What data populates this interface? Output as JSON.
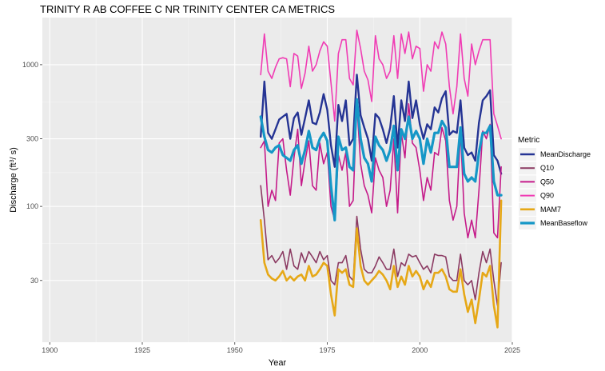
{
  "chart_data": {
    "type": "line",
    "title": "TRINITY R AB COFFEE C NR TRINITY CENTER CA  METRICS",
    "xlabel": "Year",
    "ylabel_main": "Discharge (ft",
    "ylabel_sup": "3",
    "ylabel_tail": "/ s)",
    "log_y": true,
    "xlim": [
      1898,
      2025
    ],
    "ylim": [
      11,
      2150
    ],
    "x_ticks": [
      1900,
      1925,
      1950,
      1975,
      2000,
      2025
    ],
    "y_ticks": [
      30,
      100,
      300,
      1000
    ],
    "grid": true,
    "legend_title": "Metric",
    "legend_position": "right",
    "x": [
      1957,
      1958,
      1959,
      1960,
      1961,
      1962,
      1963,
      1964,
      1965,
      1966,
      1967,
      1968,
      1969,
      1970,
      1971,
      1972,
      1973,
      1974,
      1975,
      1976,
      1977,
      1978,
      1979,
      1980,
      1981,
      1982,
      1983,
      1984,
      1985,
      1986,
      1987,
      1988,
      1989,
      1990,
      1991,
      1992,
      1993,
      1994,
      1995,
      1996,
      1997,
      1998,
      1999,
      2000,
      2001,
      2002,
      2003,
      2004,
      2005,
      2006,
      2007,
      2008,
      2009,
      2010,
      2011,
      2012,
      2013,
      2014,
      2015,
      2016,
      2017,
      2018,
      2019,
      2020,
      2021,
      2022
    ],
    "series": [
      {
        "name": "MeanDischarge",
        "color": "#253494",
        "width": 2.4,
        "values": [
          310,
          760,
          330,
          300,
          350,
          410,
          430,
          450,
          300,
          420,
          460,
          320,
          420,
          560,
          390,
          380,
          460,
          620,
          480,
          270,
          190,
          520,
          400,
          560,
          270,
          300,
          850,
          440,
          360,
          300,
          210,
          450,
          420,
          350,
          280,
          360,
          600,
          260,
          560,
          400,
          760,
          420,
          560,
          380,
          300,
          380,
          350,
          500,
          460,
          580,
          650,
          320,
          340,
          330,
          560,
          260,
          230,
          240,
          210,
          390,
          560,
          600,
          660,
          230,
          210,
          170
        ]
      },
      {
        "name": "Q10",
        "color": "#8b3a62",
        "width": 1.6,
        "values": [
          140,
          80,
          42,
          45,
          40,
          43,
          48,
          36,
          50,
          38,
          36,
          47,
          40,
          48,
          44,
          40,
          48,
          42,
          45,
          30,
          28,
          40,
          40,
          45,
          32,
          30,
          85,
          50,
          36,
          34,
          34,
          38,
          44,
          40,
          36,
          36,
          50,
          32,
          40,
          38,
          46,
          44,
          45,
          40,
          36,
          38,
          34,
          46,
          45,
          45,
          44,
          32,
          30,
          30,
          46,
          30,
          28,
          30,
          22,
          34,
          48,
          40,
          50,
          30,
          20,
          40
        ]
      },
      {
        "name": "Q50",
        "color": "#c51b8a",
        "width": 1.6,
        "values": [
          260,
          290,
          100,
          130,
          110,
          280,
          300,
          180,
          120,
          220,
          350,
          140,
          210,
          290,
          140,
          130,
          280,
          200,
          240,
          100,
          80,
          230,
          180,
          240,
          100,
          110,
          530,
          200,
          140,
          120,
          90,
          220,
          180,
          160,
          100,
          130,
          300,
          90,
          330,
          220,
          530,
          280,
          260,
          180,
          110,
          160,
          130,
          240,
          230,
          360,
          290,
          110,
          80,
          100,
          340,
          90,
          60,
          80,
          60,
          130,
          340,
          300,
          380,
          65,
          60,
          190
        ]
      },
      {
        "name": "Q90",
        "color": "#f03cb4",
        "width": 1.6,
        "values": [
          850,
          1650,
          900,
          800,
          960,
          1100,
          1120,
          1100,
          700,
          1200,
          1150,
          680,
          870,
          1350,
          900,
          1000,
          1250,
          1450,
          1350,
          750,
          400,
          1200,
          1500,
          1500,
          800,
          720,
          1750,
          1300,
          900,
          780,
          550,
          1600,
          1100,
          1000,
          800,
          900,
          1600,
          800,
          1650,
          1200,
          1700,
          1100,
          1350,
          1300,
          650,
          1000,
          900,
          1450,
          1300,
          1700,
          1400,
          700,
          450,
          700,
          1650,
          800,
          600,
          1400,
          1000,
          1250,
          1500,
          1500,
          1500,
          450,
          370,
          300
        ]
      },
      {
        "name": "MAM7",
        "color": "#e6a817",
        "width": 2.6,
        "values": [
          80,
          40,
          33,
          31,
          30,
          32,
          35,
          30,
          32,
          30,
          32,
          33,
          30,
          38,
          32,
          33,
          36,
          40,
          38,
          24,
          17,
          36,
          34,
          36,
          28,
          27,
          70,
          38,
          30,
          28,
          30,
          32,
          35,
          33,
          30,
          26,
          38,
          27,
          32,
          28,
          38,
          32,
          35,
          32,
          26,
          30,
          27,
          34,
          34,
          36,
          32,
          26,
          25,
          25,
          36,
          24,
          18,
          22,
          15,
          22,
          34,
          32,
          38,
          20,
          14,
          110
        ]
      },
      {
        "name": "MeanBaseflow",
        "color": "#1597c7",
        "width": 3.2,
        "values": [
          430,
          310,
          250,
          240,
          260,
          270,
          230,
          220,
          210,
          250,
          270,
          200,
          250,
          340,
          260,
          250,
          300,
          330,
          290,
          140,
          80,
          310,
          250,
          260,
          190,
          180,
          570,
          300,
          220,
          200,
          150,
          310,
          270,
          250,
          210,
          250,
          370,
          180,
          350,
          300,
          430,
          300,
          340,
          300,
          200,
          300,
          240,
          330,
          330,
          400,
          360,
          190,
          190,
          190,
          360,
          170,
          150,
          160,
          150,
          240,
          330,
          330,
          370,
          150,
          120,
          120
        ]
      }
    ]
  }
}
